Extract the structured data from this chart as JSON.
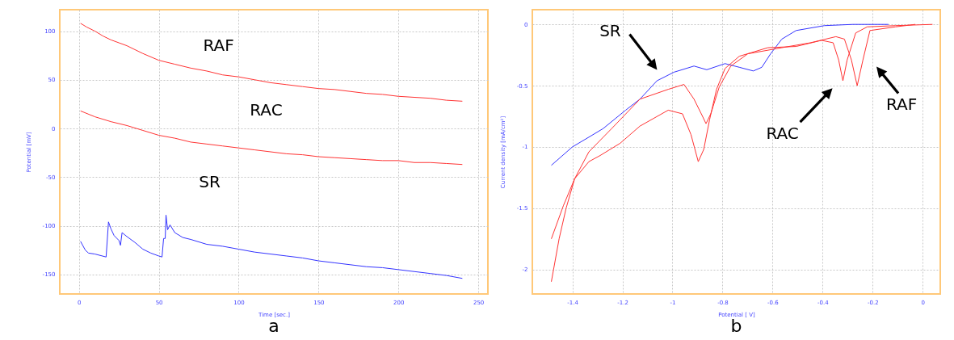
{
  "chart_data": [
    {
      "type": "line",
      "title": "a",
      "xlabel": "Time [sec.]",
      "ylabel": "Potential [mV]",
      "xlim": [
        -12,
        256
      ],
      "ylim": [
        -170,
        122
      ],
      "xticks": [
        0,
        50,
        100,
        150,
        200,
        250
      ],
      "yticks": [
        -150,
        -100,
        -50,
        0,
        50,
        100
      ],
      "grid": true,
      "series": [
        {
          "color": "#ff3333",
          "x": [
            1,
            5,
            10,
            15,
            20,
            25,
            30,
            40,
            50,
            60,
            70,
            80,
            90,
            100,
            110,
            120,
            130,
            140,
            150,
            160,
            170,
            180,
            190,
            200,
            210,
            220,
            230,
            240
          ],
          "values": [
            108,
            104,
            100,
            95,
            91,
            88,
            85,
            77,
            70,
            66,
            62,
            59,
            55,
            53,
            50,
            47,
            45,
            43,
            41,
            40,
            38,
            36,
            35,
            33,
            32,
            31,
            29,
            28
          ]
        },
        {
          "color": "#ff3333",
          "x": [
            1,
            10,
            20,
            30,
            40,
            50,
            60,
            70,
            80,
            90,
            100,
            110,
            120,
            130,
            140,
            150,
            160,
            170,
            180,
            190,
            200,
            210,
            220,
            230,
            240
          ],
          "values": [
            18,
            12,
            7,
            3,
            -2,
            -7,
            -10,
            -14,
            -16,
            -18,
            -20,
            -22,
            -24,
            -26,
            -27,
            -29,
            -30,
            -31,
            -32,
            -33,
            -33,
            -35,
            -35,
            -36,
            -37
          ]
        },
        {
          "color": "#3333ff",
          "x": [
            1,
            4,
            6,
            10,
            17,
            18.5,
            20,
            22,
            25,
            26,
            27,
            30,
            35,
            40,
            45,
            50,
            52,
            53,
            54,
            54.5,
            55.5,
            57,
            60,
            65,
            70,
            80,
            90,
            100,
            110,
            120,
            130,
            140,
            150,
            160,
            170,
            180,
            190,
            200,
            210,
            220,
            230,
            240
          ],
          "values": [
            -116,
            -125,
            -128,
            -129,
            -132,
            -96,
            -103,
            -110,
            -115,
            -120,
            -107,
            -111,
            -117,
            -124,
            -128,
            -131,
            -132,
            -113,
            -113,
            -89,
            -104,
            -99,
            -107,
            -112,
            -114,
            -119,
            -121,
            -124,
            -127,
            -129,
            -131,
            -133,
            -136,
            -138,
            -140,
            -142,
            -143,
            -145,
            -147,
            -149,
            -151,
            -154
          ]
        }
      ],
      "annotations": [
        "RAF",
        "RAC",
        "SR"
      ]
    },
    {
      "type": "line",
      "title": "b",
      "xlabel": "Potential [ V]",
      "ylabel": "Current density [mA/cm²]",
      "xlim": [
        -1.56,
        0.07
      ],
      "ylim": [
        -2.2,
        0.12
      ],
      "xticks": [
        -1.4,
        -1.2,
        -1,
        -0.8,
        -0.6,
        -0.4,
        -0.2,
        0
      ],
      "yticks": [
        -2,
        -1.5,
        -1,
        -0.5,
        0
      ],
      "grid": true,
      "series": [
        {
          "color": "#3333ff",
          "x": [
            -1.484,
            -1.4,
            -1.334,
            -1.277,
            -1.187,
            -1.13,
            -1.062,
            -0.994,
            -0.914,
            -0.863,
            -0.79,
            -0.733,
            -0.677,
            -0.643,
            -0.608,
            -0.563,
            -0.506,
            -0.393,
            -0.279,
            -0.137
          ],
          "values": [
            -1.15,
            -1.0,
            -0.92,
            -0.85,
            -0.7,
            -0.61,
            -0.46,
            -0.39,
            -0.34,
            -0.37,
            -0.32,
            -0.35,
            -0.38,
            -0.35,
            -0.24,
            -0.12,
            -0.05,
            -0.01,
            0.0,
            0.0
          ]
        },
        {
          "color": "#ff3333",
          "x": [
            -1.484,
            -1.453,
            -1.425,
            -1.391,
            -1.334,
            -1.289,
            -1.209,
            -1.13,
            -1.017,
            -0.96,
            -0.926,
            -0.897,
            -0.875,
            -0.852,
            -0.824,
            -0.79,
            -0.733,
            -0.619,
            -0.506,
            -0.404,
            -0.358,
            -0.336,
            -0.319,
            -0.302,
            -0.268,
            -0.222,
            -0.109,
            0.039
          ],
          "values": [
            -2.1,
            -1.75,
            -1.5,
            -1.26,
            -1.12,
            -1.07,
            -0.97,
            -0.83,
            -0.7,
            -0.73,
            -0.9,
            -1.12,
            -1.02,
            -0.78,
            -0.53,
            -0.36,
            -0.26,
            -0.19,
            -0.18,
            -0.13,
            -0.15,
            -0.29,
            -0.46,
            -0.29,
            -0.07,
            -0.02,
            -0.01,
            0.0
          ]
        },
        {
          "color": "#ff3333",
          "x": [
            -1.484,
            -1.436,
            -1.391,
            -1.334,
            -1.243,
            -1.13,
            -1.017,
            -0.954,
            -0.914,
            -0.88,
            -0.866,
            -0.847,
            -0.813,
            -0.767,
            -0.699,
            -0.563,
            -0.449,
            -0.347,
            -0.313,
            -0.285,
            -0.262,
            -0.239,
            -0.211,
            -0.109,
            -0.03
          ],
          "values": [
            -1.75,
            -1.48,
            -1.26,
            -1.04,
            -0.85,
            -0.61,
            -0.53,
            -0.49,
            -0.61,
            -0.75,
            -0.81,
            -0.73,
            -0.51,
            -0.34,
            -0.24,
            -0.19,
            -0.15,
            -0.1,
            -0.12,
            -0.29,
            -0.5,
            -0.29,
            -0.05,
            -0.02,
            0.0
          ]
        }
      ],
      "annotations": [
        "SR",
        "RAC",
        "RAF"
      ]
    }
  ]
}
